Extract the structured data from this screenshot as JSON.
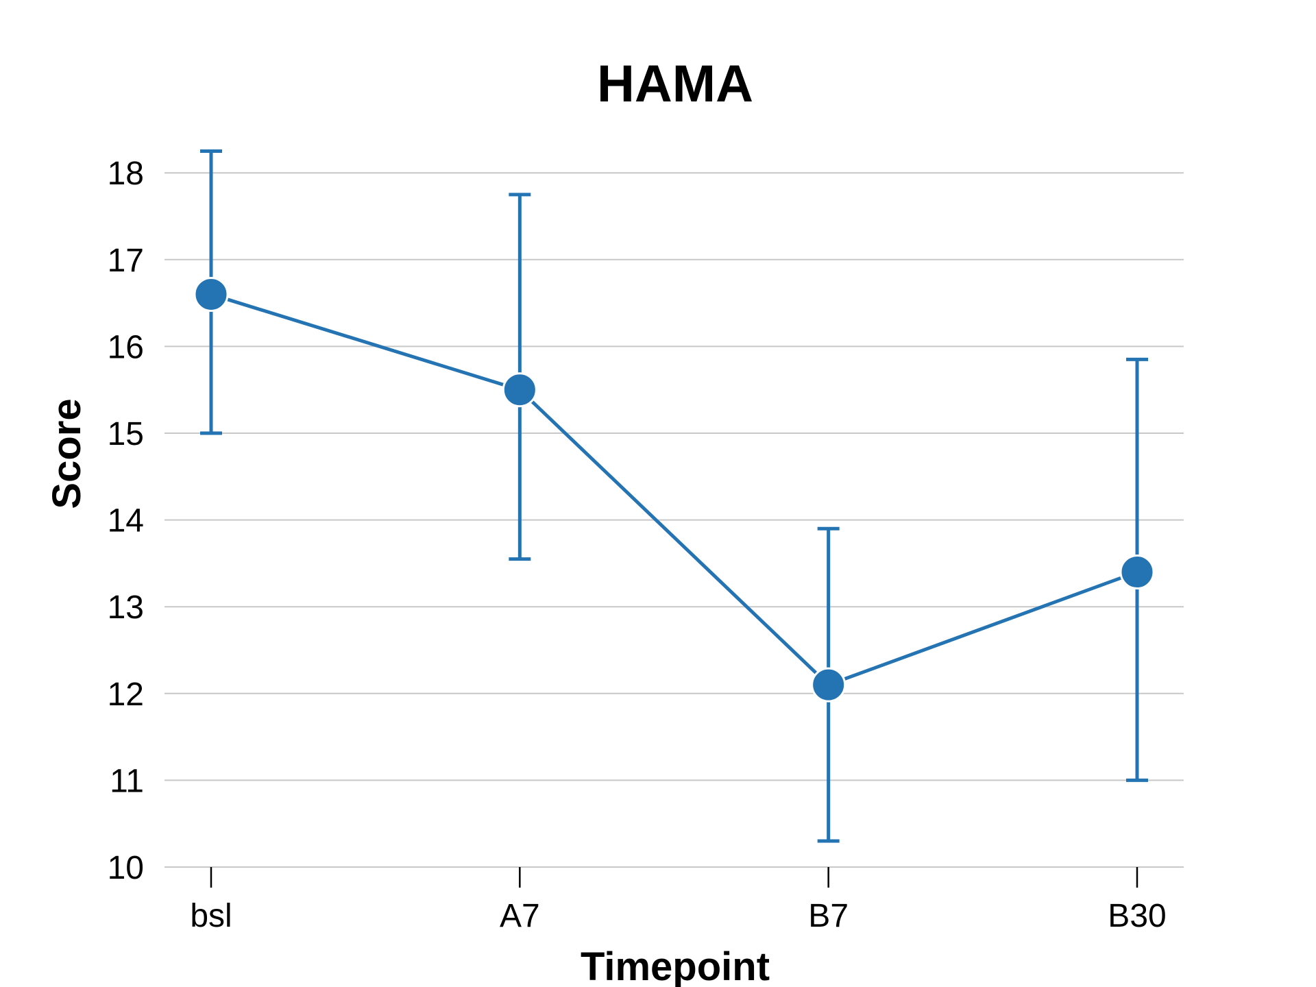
{
  "chart_data": {
    "type": "line",
    "title": "HAMA",
    "xlabel": "Timepoint",
    "ylabel": "Score",
    "categories": [
      "bsl",
      "A7",
      "B7",
      "B30"
    ],
    "y_ticks": [
      "10",
      "11",
      "12",
      "13",
      "14",
      "15",
      "16",
      "17",
      "18"
    ],
    "ylim": [
      10,
      18.3
    ],
    "grid": "horizontal",
    "series": [
      {
        "values": [
          16.6,
          15.5,
          12.1,
          13.4
        ],
        "error_low": [
          15.0,
          13.55,
          10.3,
          11.0
        ],
        "error_high": [
          18.25,
          17.75,
          13.9,
          15.85
        ],
        "color": "#2473b3"
      }
    ]
  }
}
